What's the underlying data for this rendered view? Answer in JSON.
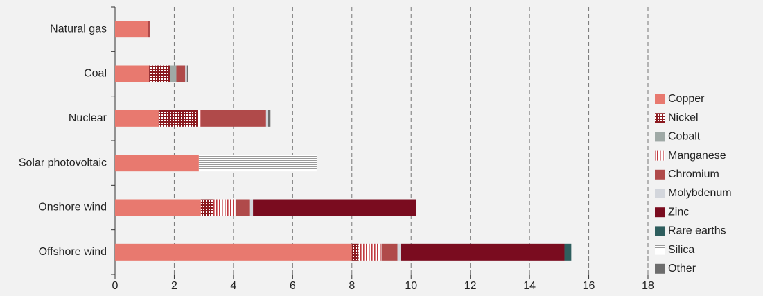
{
  "chart_data": {
    "type": "stacked-bar",
    "orientation": "horizontal",
    "categories": [
      "Natural gas",
      "Coal",
      "Nuclear",
      "Solar photovoltaic",
      "Onshore wind",
      "Offshore wind"
    ],
    "series": [
      {
        "name": "Copper",
        "color": "#e8796f",
        "values": [
          1.12,
          1.15,
          1.47,
          2.83,
          2.9,
          8.0
        ]
      },
      {
        "name": "Nickel",
        "color": "#8b1a1f",
        "pattern": "dots",
        "values": [
          null,
          0.72,
          1.33,
          null,
          0.4,
          0.23
        ]
      },
      {
        "name": "Cobalt",
        "color": "#9fa9a6",
        "values": [
          null,
          0.2,
          null,
          null,
          null,
          null
        ]
      },
      {
        "name": "Manganese",
        "color": "#c0393f",
        "pattern": "vertical",
        "values": [
          null,
          null,
          0.1,
          null,
          0.77,
          0.77
        ]
      },
      {
        "name": "Chromium",
        "color": "#b04a4a",
        "values": [
          0.05,
          0.3,
          2.2,
          null,
          0.49,
          0.54
        ]
      },
      {
        "name": "Molybdenum",
        "color": "#d3d6dc",
        "values": [
          null,
          0.06,
          0.05,
          null,
          0.1,
          0.12
        ]
      },
      {
        "name": "Zinc",
        "color": "#7a0c1f",
        "values": [
          null,
          null,
          null,
          null,
          5.5,
          5.52
        ]
      },
      {
        "name": "Rare earths",
        "color": "#2e5e5e",
        "values": [
          null,
          null,
          null,
          null,
          null,
          0.23
        ]
      },
      {
        "name": "Silica",
        "color": "#9a9a9a",
        "pattern": "horizontal",
        "values": [
          null,
          null,
          null,
          3.98,
          null,
          null
        ]
      },
      {
        "name": "Other",
        "color": "#6d6d6d",
        "values": [
          null,
          0.05,
          0.1,
          null,
          null,
          null
        ]
      }
    ],
    "xlim": [
      0,
      18
    ],
    "xticks": [
      0,
      2,
      4,
      6,
      8,
      10,
      12,
      14,
      16,
      18
    ],
    "grid": true,
    "legend": "right"
  }
}
